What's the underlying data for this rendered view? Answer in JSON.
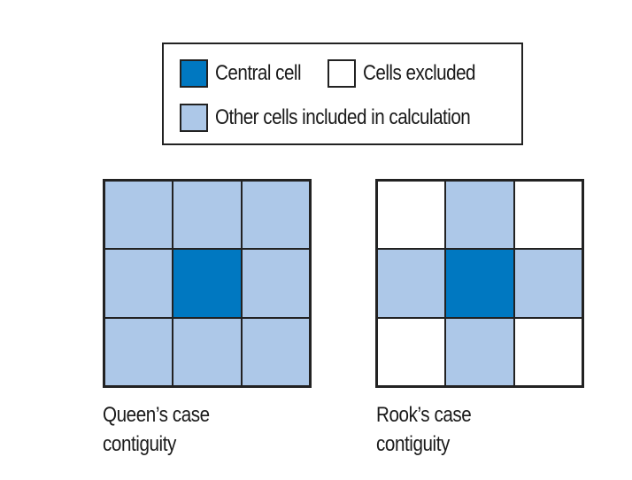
{
  "colors": {
    "central": "#0078c1",
    "included": "#adc8e8",
    "excluded": "#ffffff",
    "border": "#222222"
  },
  "legend": {
    "central_label": "Central cell",
    "excluded_label": "Cells excluded",
    "included_label": "Other cells included in calculation"
  },
  "grids": [
    {
      "caption_line1": "Queen’s case",
      "caption_line2": "contiguity",
      "cells": [
        "included",
        "included",
        "included",
        "included",
        "central",
        "included",
        "included",
        "included",
        "included"
      ]
    },
    {
      "caption_line1": "Rook’s case",
      "caption_line2": "contiguity",
      "cells": [
        "excluded",
        "included",
        "excluded",
        "included",
        "central",
        "included",
        "excluded",
        "included",
        "excluded"
      ]
    }
  ]
}
